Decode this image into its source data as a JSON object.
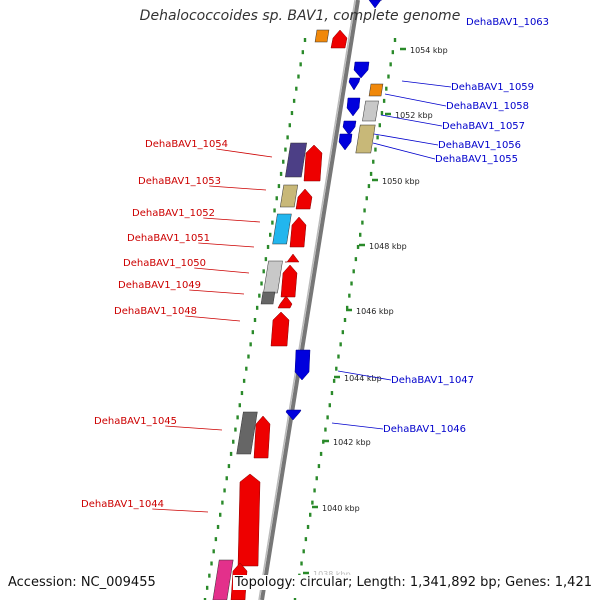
{
  "title": "Dehalococcoides sp. BAV1, complete genome",
  "footer": {
    "accession": "Accession: NC_009455",
    "topology": "Topology: circular; Length: 1,341,892 bp; Genes: 1,421"
  },
  "scale_ticks": [
    "1054 kbp",
    "1052 kbp",
    "1050 kbp",
    "1048 kbp",
    "1046 kbp",
    "1044 kbp",
    "1042 kbp",
    "1040 kbp",
    "1038 kbp"
  ],
  "colors": {
    "minus_label": "#cc0000",
    "plus_label": "#0000cc",
    "backbone": "#999999",
    "tick": "#2a8a2a"
  },
  "genes_minus": [
    {
      "label": "DehaBAV1_1054"
    },
    {
      "label": "DehaBAV1_1053"
    },
    {
      "label": "DehaBAV1_1052"
    },
    {
      "label": "DehaBAV1_1051"
    },
    {
      "label": "DehaBAV1_1050"
    },
    {
      "label": "DehaBAV1_1049"
    },
    {
      "label": "DehaBAV1_1048"
    },
    {
      "label": "DehaBAV1_1045"
    },
    {
      "label": "DehaBAV1_1044"
    }
  ],
  "genes_plus": [
    {
      "label": "DehaBAV1_1063"
    },
    {
      "label": "DehaBAV1_1059"
    },
    {
      "label": "DehaBAV1_1058"
    },
    {
      "label": "DehaBAV1_1057"
    },
    {
      "label": "DehaBAV1_1056"
    },
    {
      "label": "DehaBAV1_1055"
    },
    {
      "label": "DehaBAV1_1047"
    },
    {
      "label": "DehaBAV1_1046"
    }
  ]
}
